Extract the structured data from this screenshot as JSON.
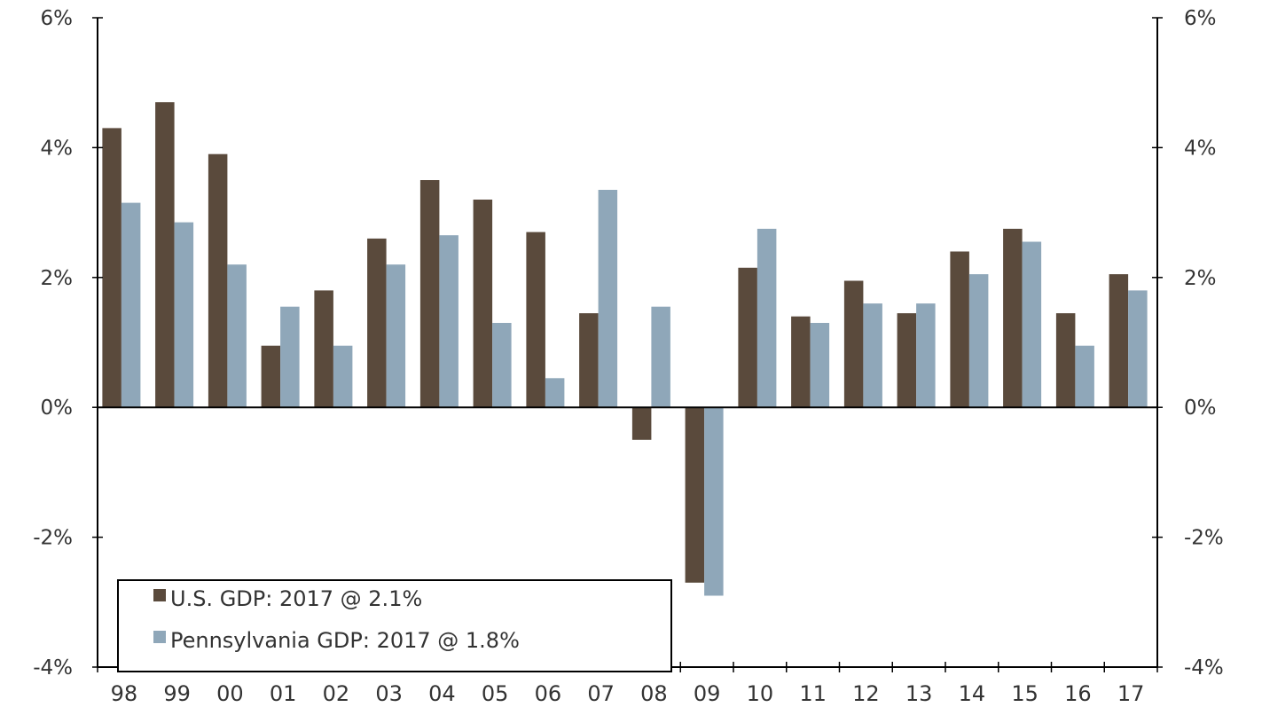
{
  "colors": {
    "us": "#5a4a3c",
    "pa": "#8fa7b9",
    "axis": "#000000",
    "background": "#ffffff"
  },
  "chart_data": {
    "type": "bar",
    "title": "",
    "xlabel": "",
    "ylabel": "",
    "categories": [
      "98",
      "99",
      "00",
      "01",
      "02",
      "03",
      "04",
      "05",
      "06",
      "07",
      "08",
      "09",
      "10",
      "11",
      "12",
      "13",
      "14",
      "15",
      "16",
      "17"
    ],
    "series": [
      {
        "name": "U.S. GDP: 2017 @ 2.1%",
        "color": "#5a4a3c",
        "values": [
          4.3,
          4.7,
          3.9,
          0.95,
          1.8,
          2.6,
          3.5,
          3.2,
          2.7,
          1.45,
          -0.5,
          -2.7,
          2.15,
          1.4,
          1.95,
          1.45,
          2.4,
          2.75,
          1.45,
          2.05
        ]
      },
      {
        "name": "Pennsylvania GDP: 2017 @ 1.8%",
        "color": "#8fa7b9",
        "values": [
          3.15,
          2.85,
          2.2,
          1.55,
          0.95,
          2.2,
          2.65,
          1.3,
          0.45,
          3.35,
          1.55,
          -2.9,
          2.75,
          1.3,
          1.6,
          1.6,
          2.05,
          2.55,
          0.95,
          1.8
        ]
      }
    ],
    "ylim": [
      -4,
      6
    ],
    "yticks": [
      -4,
      -2,
      0,
      2,
      4,
      6
    ],
    "ytick_labels": [
      "-4%",
      "-2%",
      "0%",
      "2%",
      "4%",
      "6%"
    ],
    "secondary_axis": true,
    "grid": false,
    "legend_position": "bottom-left"
  }
}
